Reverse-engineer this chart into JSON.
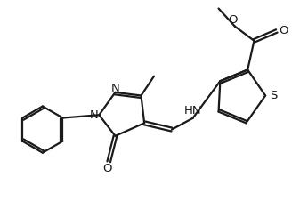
{
  "bg_color": "#ffffff",
  "line_color": "#1a1a1a",
  "line_width": 1.6,
  "font_size": 9.5,
  "figsize": [
    3.46,
    2.44
  ],
  "dpi": 100,
  "xlim": [
    0,
    9.5
  ],
  "ylim": [
    0.5,
    7.0
  ]
}
